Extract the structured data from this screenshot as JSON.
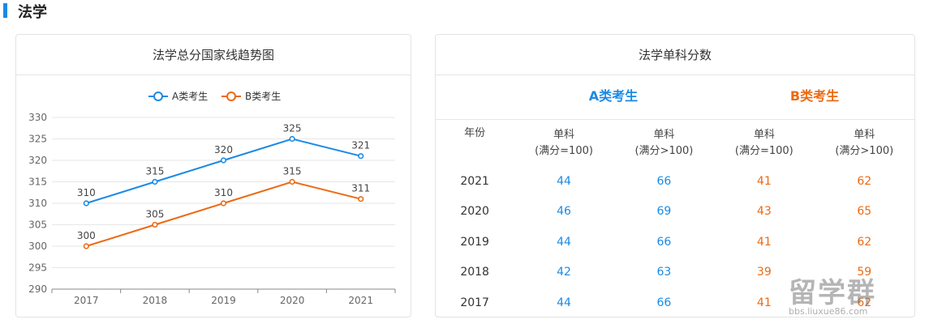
{
  "section": {
    "title": "法学"
  },
  "left_card": {
    "title": "法学总分国家线趋势图"
  },
  "right_card": {
    "title": "法学单科分数",
    "group_a": "A类考生",
    "group_b": "B类考生",
    "headers": [
      "年份",
      "单科\n(满分=100)",
      "单科\n(满分>100)",
      "单科\n(满分=100)",
      "单科\n(满分>100)"
    ],
    "rows": [
      [
        "2021",
        "44",
        "66",
        "41",
        "62"
      ],
      [
        "2020",
        "46",
        "69",
        "43",
        "65"
      ],
      [
        "2019",
        "44",
        "66",
        "41",
        "62"
      ],
      [
        "2018",
        "42",
        "63",
        "39",
        "59"
      ],
      [
        "2017",
        "44",
        "66",
        "41",
        "62"
      ]
    ]
  },
  "watermark": {
    "main": "留学群",
    "sub": "bbs.liuxue86.com"
  },
  "colors": {
    "series_a": "#1a8ae5",
    "series_b": "#ec6a12",
    "accent": "#1a8ae5"
  },
  "chart_data": {
    "type": "line",
    "title": "法学总分国家线趋势图",
    "categories": [
      "2017",
      "2018",
      "2019",
      "2020",
      "2021"
    ],
    "series": [
      {
        "name": "A类考生",
        "values": [
          310,
          315,
          320,
          325,
          321
        ],
        "color": "#1a8ae5"
      },
      {
        "name": "B类考生",
        "values": [
          300,
          305,
          310,
          315,
          311
        ],
        "color": "#ec6a12"
      }
    ],
    "ylim": [
      290,
      330
    ],
    "yticks": [
      290,
      295,
      300,
      305,
      310,
      315,
      320,
      325,
      330
    ],
    "grid": true,
    "legend": "top-center",
    "data_labels": true
  }
}
